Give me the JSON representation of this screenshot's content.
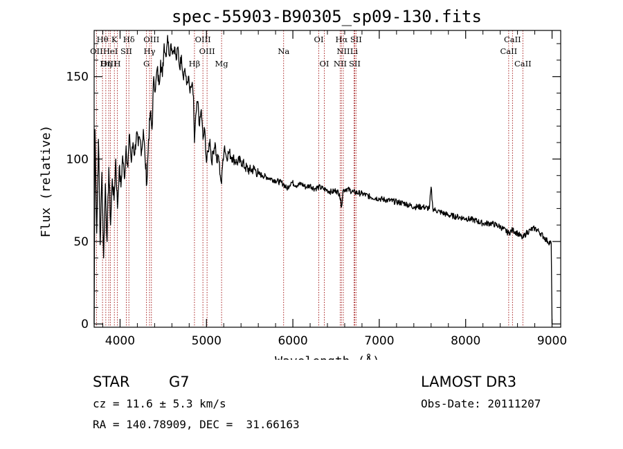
{
  "chart_data": {
    "type": "line",
    "title": "spec-55903-B90305_sp09-130.fits",
    "xlabel": "Wavelength (Å)",
    "ylabel": "Flux (relative)",
    "xlim": [
      3700,
      9100
    ],
    "ylim": [
      -2,
      178
    ],
    "xticks": [
      4000,
      5000,
      6000,
      7000,
      8000,
      9000
    ],
    "yticks": [
      0,
      50,
      100,
      150
    ],
    "series": [
      {
        "name": "flux",
        "x": [
          3700,
          3710,
          3730,
          3750,
          3770,
          3790,
          3810,
          3830,
          3850,
          3870,
          3890,
          3910,
          3930,
          3950,
          3970,
          3990,
          4010,
          4030,
          4050,
          4070,
          4090,
          4110,
          4130,
          4150,
          4170,
          4190,
          4210,
          4230,
          4250,
          4270,
          4290,
          4310,
          4330,
          4350,
          4370,
          4390,
          4410,
          4430,
          4450,
          4470,
          4490,
          4510,
          4530,
          4550,
          4570,
          4590,
          4610,
          4630,
          4650,
          4670,
          4690,
          4710,
          4730,
          4750,
          4770,
          4790,
          4810,
          4830,
          4850,
          4861,
          4880,
          4900,
          4920,
          4940,
          4960,
          4980,
          5000,
          5020,
          5040,
          5060,
          5080,
          5100,
          5120,
          5140,
          5160,
          5175,
          5190,
          5210,
          5230,
          5260,
          5300,
          5350,
          5400,
          5450,
          5500,
          5550,
          5600,
          5650,
          5700,
          5750,
          5800,
          5850,
          5890,
          5930,
          5980,
          6050,
          6100,
          6150,
          6200,
          6250,
          6300,
          6350,
          6400,
          6450,
          6500,
          6540,
          6563,
          6580,
          6620,
          6700,
          6800,
          6900,
          7000,
          7100,
          7200,
          7300,
          7400,
          7500,
          7580,
          7600,
          7620,
          7650,
          7700,
          7800,
          7900,
          8000,
          8100,
          8200,
          8300,
          8400,
          8498,
          8542,
          8600,
          8662,
          8700,
          8750,
          8800,
          8850,
          8900,
          8950,
          8990,
          9000
        ],
        "y": [
          0,
          118,
          55,
          112,
          48,
          92,
          40,
          85,
          50,
          95,
          60,
          88,
          75,
          100,
          70,
          95,
          83,
          102,
          88,
          108,
          95,
          115,
          98,
          110,
          103,
          116,
          108,
          112,
          105,
          118,
          100,
          85,
          112,
          128,
          118,
          150,
          142,
          155,
          145,
          160,
          150,
          170,
          162,
          175,
          163,
          170,
          165,
          168,
          160,
          168,
          155,
          163,
          150,
          155,
          145,
          150,
          140,
          145,
          138,
          110,
          128,
          135,
          120,
          130,
          112,
          118,
          98,
          105,
          112,
          98,
          105,
          110,
          98,
          102,
          90,
          85,
          100,
          108,
          101,
          104,
          101,
          98,
          99,
          95,
          93,
          94,
          91,
          90,
          89,
          88,
          87,
          86,
          85,
          82,
          86,
          84,
          85,
          83,
          84,
          82,
          83,
          82,
          81,
          80,
          81,
          79,
          71,
          81,
          82,
          80,
          79,
          77,
          76,
          75,
          74,
          73,
          71,
          71,
          70,
          83,
          70,
          69,
          68,
          66,
          65,
          64,
          63,
          61,
          61,
          59,
          55,
          57,
          55,
          52,
          55,
          57,
          58,
          56,
          53,
          50,
          49,
          0
        ]
      }
    ],
    "lines": [
      {
        "name": "Hθ",
        "wl": 3797,
        "row": 0
      },
      {
        "name": "OII",
        "wl": 3727,
        "row": 1
      },
      {
        "name": "OIII",
        "wl": 3869,
        "row": 2
      },
      {
        "name": "HeI",
        "wl": 3889,
        "row": 1
      },
      {
        "name": "Hη",
        "wl": 3835,
        "row": 2
      },
      {
        "name": "K",
        "wl": 3934,
        "row": 0
      },
      {
        "name": "SII",
        "wl": 4072,
        "row": 1
      },
      {
        "name": "H",
        "wl": 3969,
        "row": 2
      },
      {
        "name": "Hδ",
        "wl": 4102,
        "row": 0
      },
      {
        "name": "OIII",
        "wl": 4363,
        "row": 0
      },
      {
        "name": "Hγ",
        "wl": 4341,
        "row": 1
      },
      {
        "name": "G",
        "wl": 4306,
        "row": 2
      },
      {
        "name": "OIII",
        "wl": 4959,
        "row": 0
      },
      {
        "name": "OIII",
        "wl": 5007,
        "row": 1
      },
      {
        "name": "Hβ",
        "wl": 4861,
        "row": 2
      },
      {
        "name": "Mg",
        "wl": 5175,
        "row": 2
      },
      {
        "name": "Na",
        "wl": 5893,
        "row": 1
      },
      {
        "name": "OI",
        "wl": 6300,
        "row": 0
      },
      {
        "name": "OI",
        "wl": 6364,
        "row": 2
      },
      {
        "name": "Hα",
        "wl": 6563,
        "row": 0
      },
      {
        "name": "SII",
        "wl": 6731,
        "row": 0
      },
      {
        "name": "NII",
        "wl": 6584,
        "row": 1
      },
      {
        "name": "Li",
        "wl": 6708,
        "row": 1
      },
      {
        "name": "NII",
        "wl": 6548,
        "row": 2
      },
      {
        "name": "SII",
        "wl": 6716,
        "row": 2
      },
      {
        "name": "CaII",
        "wl": 8542,
        "row": 0
      },
      {
        "name": "CaII",
        "wl": 8498,
        "row": 1
      },
      {
        "name": "CaII",
        "wl": 8662,
        "row": 2
      }
    ],
    "line_color": "#a01010"
  },
  "info": {
    "object_class": "STAR",
    "subclass": "G7",
    "survey": "LAMOST DR3",
    "cz": "cz = 11.6 ± 5.3 km/s",
    "obs_date": "Obs-Date: 20111207",
    "coords": "RA = 140.78909, DEC =  31.66163"
  }
}
